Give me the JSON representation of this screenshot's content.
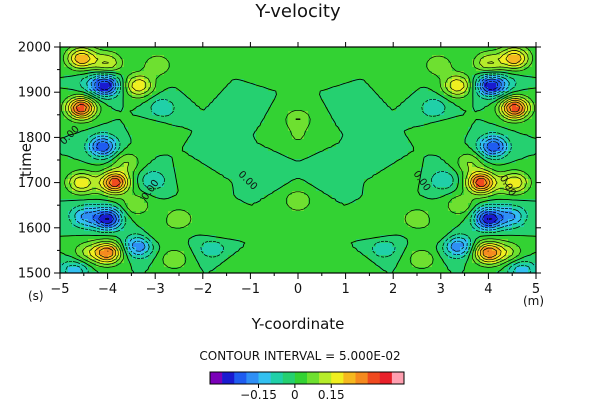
{
  "chart_data": {
    "type": "heatmap",
    "title": "Y-velocity",
    "xlabel": "Y-coordinate",
    "ylabel": "time",
    "x_unit": "(m)",
    "y_unit": "(s)",
    "xlim": [
      -5,
      5
    ],
    "ylim": [
      1500,
      2000
    ],
    "x_ticks": [
      -5,
      -4,
      -3,
      -2,
      -1,
      0,
      1,
      2,
      3,
      4,
      5
    ],
    "y_ticks": [
      1500,
      1600,
      1700,
      1800,
      1900,
      2000
    ],
    "contour_label": "0.00",
    "contour_interval_text": "CONTOUR INTERVAL = 5.000E-02",
    "colorbar": {
      "colors": [
        "#7a00b8",
        "#1a1ad0",
        "#1f5cf0",
        "#2f8ff5",
        "#33c0f0",
        "#20d0a8",
        "#25d070",
        "#33d233",
        "#6ee030",
        "#b6ec2a",
        "#f0ee20",
        "#f5b81f",
        "#f58a1f",
        "#f04a1f",
        "#e8202a",
        "#ff9fb0"
      ],
      "tick_labels": [
        "-0.15",
        "0",
        "0.15"
      ],
      "tick_values": [
        -0.15,
        0,
        0.15
      ],
      "range": [
        -0.35,
        0.45
      ]
    },
    "features": [
      {
        "x": -4.55,
        "t": 1975,
        "value": 0.25
      },
      {
        "x": -4.0,
        "t": 1965,
        "value": 0.15
      },
      {
        "x": -2.95,
        "t": 1960,
        "value": 0.1
      },
      {
        "x": -2.0,
        "t": 1925,
        "value": 0.05
      },
      {
        "x": -4.45,
        "t": 1920,
        "value": -0.05
      },
      {
        "x": -4.05,
        "t": 1915,
        "value": -0.3
      },
      {
        "x": -3.35,
        "t": 1915,
        "value": 0.2
      },
      {
        "x": -4.55,
        "t": 1865,
        "value": 0.35
      },
      {
        "x": -2.85,
        "t": 1865,
        "value": -0.1
      },
      {
        "x": -3.05,
        "t": 1815,
        "value": 0.05
      },
      {
        "x": -4.1,
        "t": 1780,
        "value": -0.25
      },
      {
        "x": -3.6,
        "t": 1745,
        "value": 0.1
      },
      {
        "x": -4.55,
        "t": 1700,
        "value": 0.2
      },
      {
        "x": -3.85,
        "t": 1700,
        "value": 0.35
      },
      {
        "x": -3.05,
        "t": 1705,
        "value": -0.1
      },
      {
        "x": -2.15,
        "t": 1715,
        "value": 0.05
      },
      {
        "x": -3.4,
        "t": 1650,
        "value": 0.1
      },
      {
        "x": -4.5,
        "t": 1625,
        "value": -0.15
      },
      {
        "x": -4.0,
        "t": 1620,
        "value": -0.3
      },
      {
        "x": -2.5,
        "t": 1620,
        "value": 0.1
      },
      {
        "x": -3.0,
        "t": 1585,
        "value": 0.05
      },
      {
        "x": -1.7,
        "t": 1595,
        "value": 0.05
      },
      {
        "x": -4.45,
        "t": 1545,
        "value": 0.1
      },
      {
        "x": -4.0,
        "t": 1545,
        "value": 0.3
      },
      {
        "x": -3.35,
        "t": 1560,
        "value": -0.2
      },
      {
        "x": -2.6,
        "t": 1530,
        "value": 0.1
      },
      {
        "x": -1.8,
        "t": 1555,
        "value": -0.1
      },
      {
        "x": -4.7,
        "t": 1505,
        "value": -0.15
      },
      {
        "x": -0.4,
        "t": 1530,
        "value": 0.05
      },
      {
        "x": -1.25,
        "t": 1510,
        "value": 0.05
      },
      {
        "x": 0.0,
        "t": 1660,
        "value": 0.1
      },
      {
        "x": 0.0,
        "t": 1600,
        "value": 0.05
      },
      {
        "x": 0.0,
        "t": 1840,
        "value": 0.1
      },
      {
        "x": 0.0,
        "t": 1800,
        "value": 0.05
      },
      {
        "x": -1.2,
        "t": 1880,
        "value": -0.05
      },
      {
        "x": -1.7,
        "t": 1760,
        "value": -0.05
      },
      {
        "x": -0.6,
        "t": 1720,
        "value": -0.05
      },
      {
        "x": -0.8,
        "t": 1960,
        "value": 0.05
      }
    ]
  }
}
